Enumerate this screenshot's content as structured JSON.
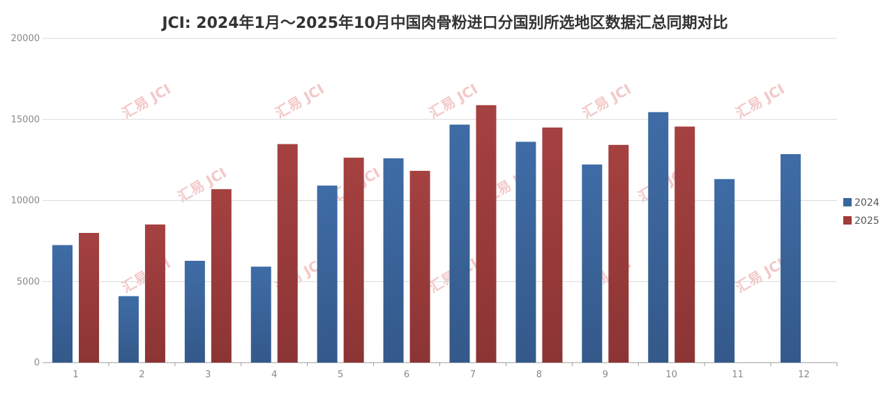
{
  "chart_data": {
    "type": "bar",
    "title": "JCI: 2024年1月～2025年10月中国肉骨粉进口分国别所选地区数据汇总同期对比",
    "xlabel": "",
    "ylabel": "",
    "categories": [
      "1",
      "2",
      "3",
      "4",
      "5",
      "6",
      "7",
      "8",
      "9",
      "10",
      "11",
      "12"
    ],
    "series": [
      {
        "name": "2024",
        "color": "#3a669e",
        "values": [
          7250,
          4100,
          6280,
          5920,
          10920,
          12600,
          14680,
          13620,
          12220,
          15450,
          11320,
          12860
        ]
      },
      {
        "name": "2025",
        "color": "#9e3b3b",
        "values": [
          8000,
          8520,
          10700,
          13480,
          12640,
          11830,
          15880,
          14500,
          13430,
          14560,
          null,
          null
        ]
      }
    ],
    "ylim": [
      0,
      20000
    ],
    "yticks": [
      0,
      5000,
      10000,
      15000,
      20000
    ],
    "grid": true,
    "legend_position": "right"
  },
  "watermark": {
    "text": "汇易 JCI"
  }
}
